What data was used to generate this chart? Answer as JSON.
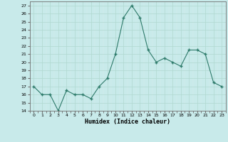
{
  "x": [
    0,
    1,
    2,
    3,
    4,
    5,
    6,
    7,
    8,
    9,
    10,
    11,
    12,
    13,
    14,
    15,
    16,
    17,
    18,
    19,
    20,
    21,
    22,
    23
  ],
  "y": [
    17,
    16,
    16,
    14,
    16.5,
    16,
    16,
    15.5,
    17,
    18,
    21,
    25.5,
    27,
    25.5,
    21.5,
    20,
    20.5,
    20,
    19.5,
    21.5,
    21.5,
    21,
    17.5,
    17
  ],
  "line_color": "#2d7a6a",
  "marker_color": "#2d7a6a",
  "bg_color": "#c8eaea",
  "grid_major_color": "#b0d8d0",
  "grid_minor_color": "#d8ecec",
  "xlabel": "Humidex (Indice chaleur)",
  "ylim": [
    14,
    27.5
  ],
  "xlim": [
    -0.5,
    23.5
  ],
  "yticks": [
    14,
    15,
    16,
    17,
    18,
    19,
    20,
    21,
    22,
    23,
    24,
    25,
    26,
    27
  ],
  "xticks": [
    0,
    1,
    2,
    3,
    4,
    5,
    6,
    7,
    8,
    9,
    10,
    11,
    12,
    13,
    14,
    15,
    16,
    17,
    18,
    19,
    20,
    21,
    22,
    23
  ]
}
